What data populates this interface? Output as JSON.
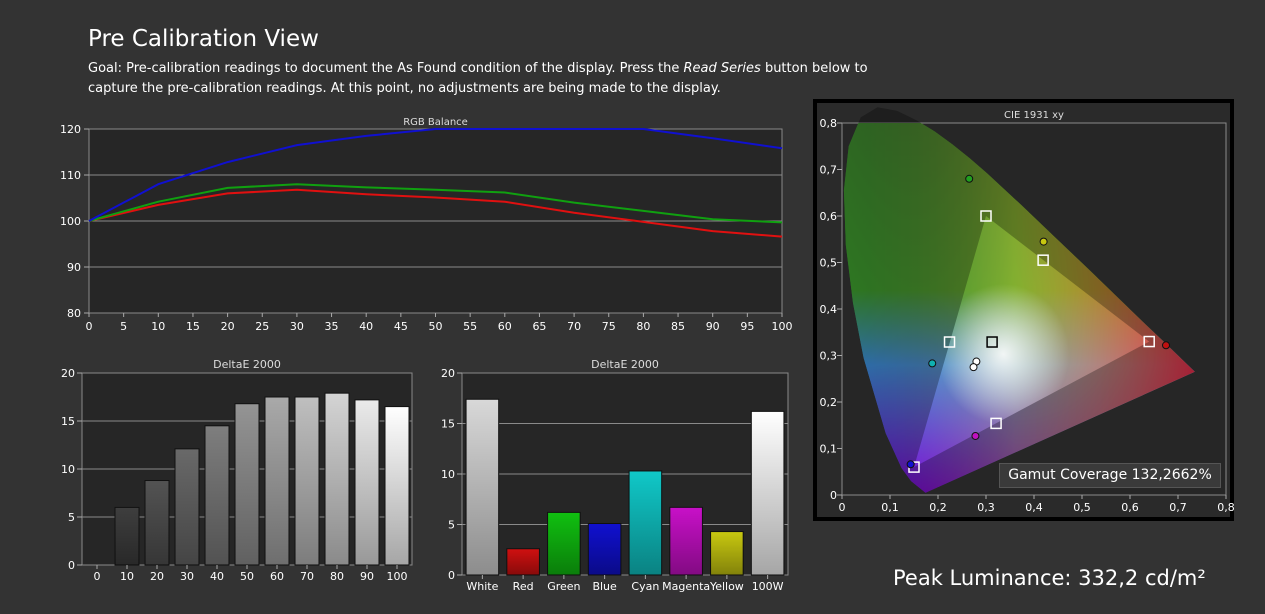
{
  "header": {
    "title": "Pre Calibration View",
    "goal_prefix": "Goal: Pre-calibration readings to document the As Found condition of the display. Press the ",
    "goal_em": "Read Series",
    "goal_suffix": " button below to capture the pre-calibration readings. At this point, no adjustments are being made to the display."
  },
  "peak_luminance": "Peak Luminance: 332,2 cd/m²",
  "gamut_coverage": "Gamut Coverage 132,2662%",
  "colors": {
    "background": "#333333",
    "plot_bg": "#2a2a2a",
    "red": "#e01010",
    "green": "#10a010",
    "blue": "#1010d0"
  },
  "chart_data": [
    {
      "type": "line",
      "title": "RGB Balance",
      "x": [
        0,
        10,
        20,
        30,
        40,
        50,
        60,
        70,
        80,
        90,
        100
      ],
      "xticks": [
        "0",
        "5",
        "10",
        "15",
        "20",
        "25",
        "30",
        "35",
        "40",
        "45",
        "50",
        "55",
        "60",
        "65",
        "70",
        "75",
        "80",
        "85",
        "90",
        "95",
        "100"
      ],
      "yticks": [
        "80",
        "90",
        "100",
        "110",
        "120"
      ],
      "xlim": [
        0,
        100
      ],
      "ylim": [
        80,
        120
      ],
      "series": [
        {
          "color": "#e01010",
          "values": [
            100,
            103.5,
            106,
            106.8,
            105.8,
            105.1,
            104.2,
            101.8,
            99.8,
            97.8,
            96.6
          ]
        },
        {
          "color": "#10a010",
          "values": [
            100,
            104.2,
            107.2,
            108,
            107.3,
            106.8,
            106.2,
            104,
            102.2,
            100.4,
            99.7
          ]
        },
        {
          "color": "#1010d0",
          "values": [
            100,
            108,
            112.8,
            116.5,
            118.5,
            120,
            120,
            120,
            120,
            118,
            115.8
          ]
        }
      ]
    },
    {
      "type": "bar",
      "title": "DeltaE 2000",
      "categories": [
        "0",
        "10",
        "20",
        "30",
        "40",
        "50",
        "60",
        "70",
        "80",
        "90",
        "100"
      ],
      "values": [
        0,
        6,
        8.8,
        12.1,
        14.5,
        16.8,
        17.5,
        17.5,
        17.9,
        17.2,
        16.5
      ],
      "yticks": [
        "0",
        "5",
        "10",
        "15",
        "20"
      ],
      "ylim": [
        0,
        20
      ]
    },
    {
      "type": "bar",
      "title": "DeltaE 2000",
      "categories": [
        "White",
        "Red",
        "Green",
        "Blue",
        "Cyan",
        "Magenta",
        "Yellow",
        "100W"
      ],
      "values": [
        17.4,
        2.6,
        6.2,
        5.1,
        10.3,
        6.7,
        4.3,
        16.2
      ],
      "colors": [
        "#d8d8d8",
        "#d01010",
        "#10c010",
        "#1010d0",
        "#10c8c8",
        "#c810c8",
        "#c8c810",
        "#ffffff"
      ],
      "yticks": [
        "0",
        "5",
        "10",
        "15",
        "20"
      ],
      "ylim": [
        0,
        20
      ]
    },
    {
      "type": "scatter",
      "title": "CIE 1931 xy",
      "xticks": [
        "0",
        "0,1",
        "0,2",
        "0,3",
        "0,4",
        "0,5",
        "0,6",
        "0,7",
        "0,8"
      ],
      "yticks": [
        "0",
        "0,1",
        "0,2",
        "0,3",
        "0,4",
        "0,5",
        "0,6",
        "0,7",
        "0,8"
      ],
      "xlim": [
        0,
        0.8
      ],
      "ylim": [
        0,
        0.8
      ],
      "targets": [
        {
          "x": 0.64,
          "y": 0.33
        },
        {
          "x": 0.3,
          "y": 0.6
        },
        {
          "x": 0.15,
          "y": 0.06
        },
        {
          "x": 0.419,
          "y": 0.505
        },
        {
          "x": 0.224,
          "y": 0.329
        },
        {
          "x": 0.321,
          "y": 0.154
        },
        {
          "x": 0.3127,
          "y": 0.329
        }
      ],
      "measured": [
        {
          "x": 0.675,
          "y": 0.322,
          "color": "#c01010"
        },
        {
          "x": 0.265,
          "y": 0.68,
          "color": "#20a020"
        },
        {
          "x": 0.143,
          "y": 0.066,
          "color": "#1010d0"
        },
        {
          "x": 0.42,
          "y": 0.545,
          "color": "#c8c810"
        },
        {
          "x": 0.188,
          "y": 0.283,
          "color": "#10b0b0"
        },
        {
          "x": 0.278,
          "y": 0.127,
          "color": "#c010c0"
        },
        {
          "x": 0.28,
          "y": 0.287,
          "color": "#ffffff"
        },
        {
          "x": 0.274,
          "y": 0.275,
          "color": "#ffffff"
        }
      ]
    }
  ]
}
